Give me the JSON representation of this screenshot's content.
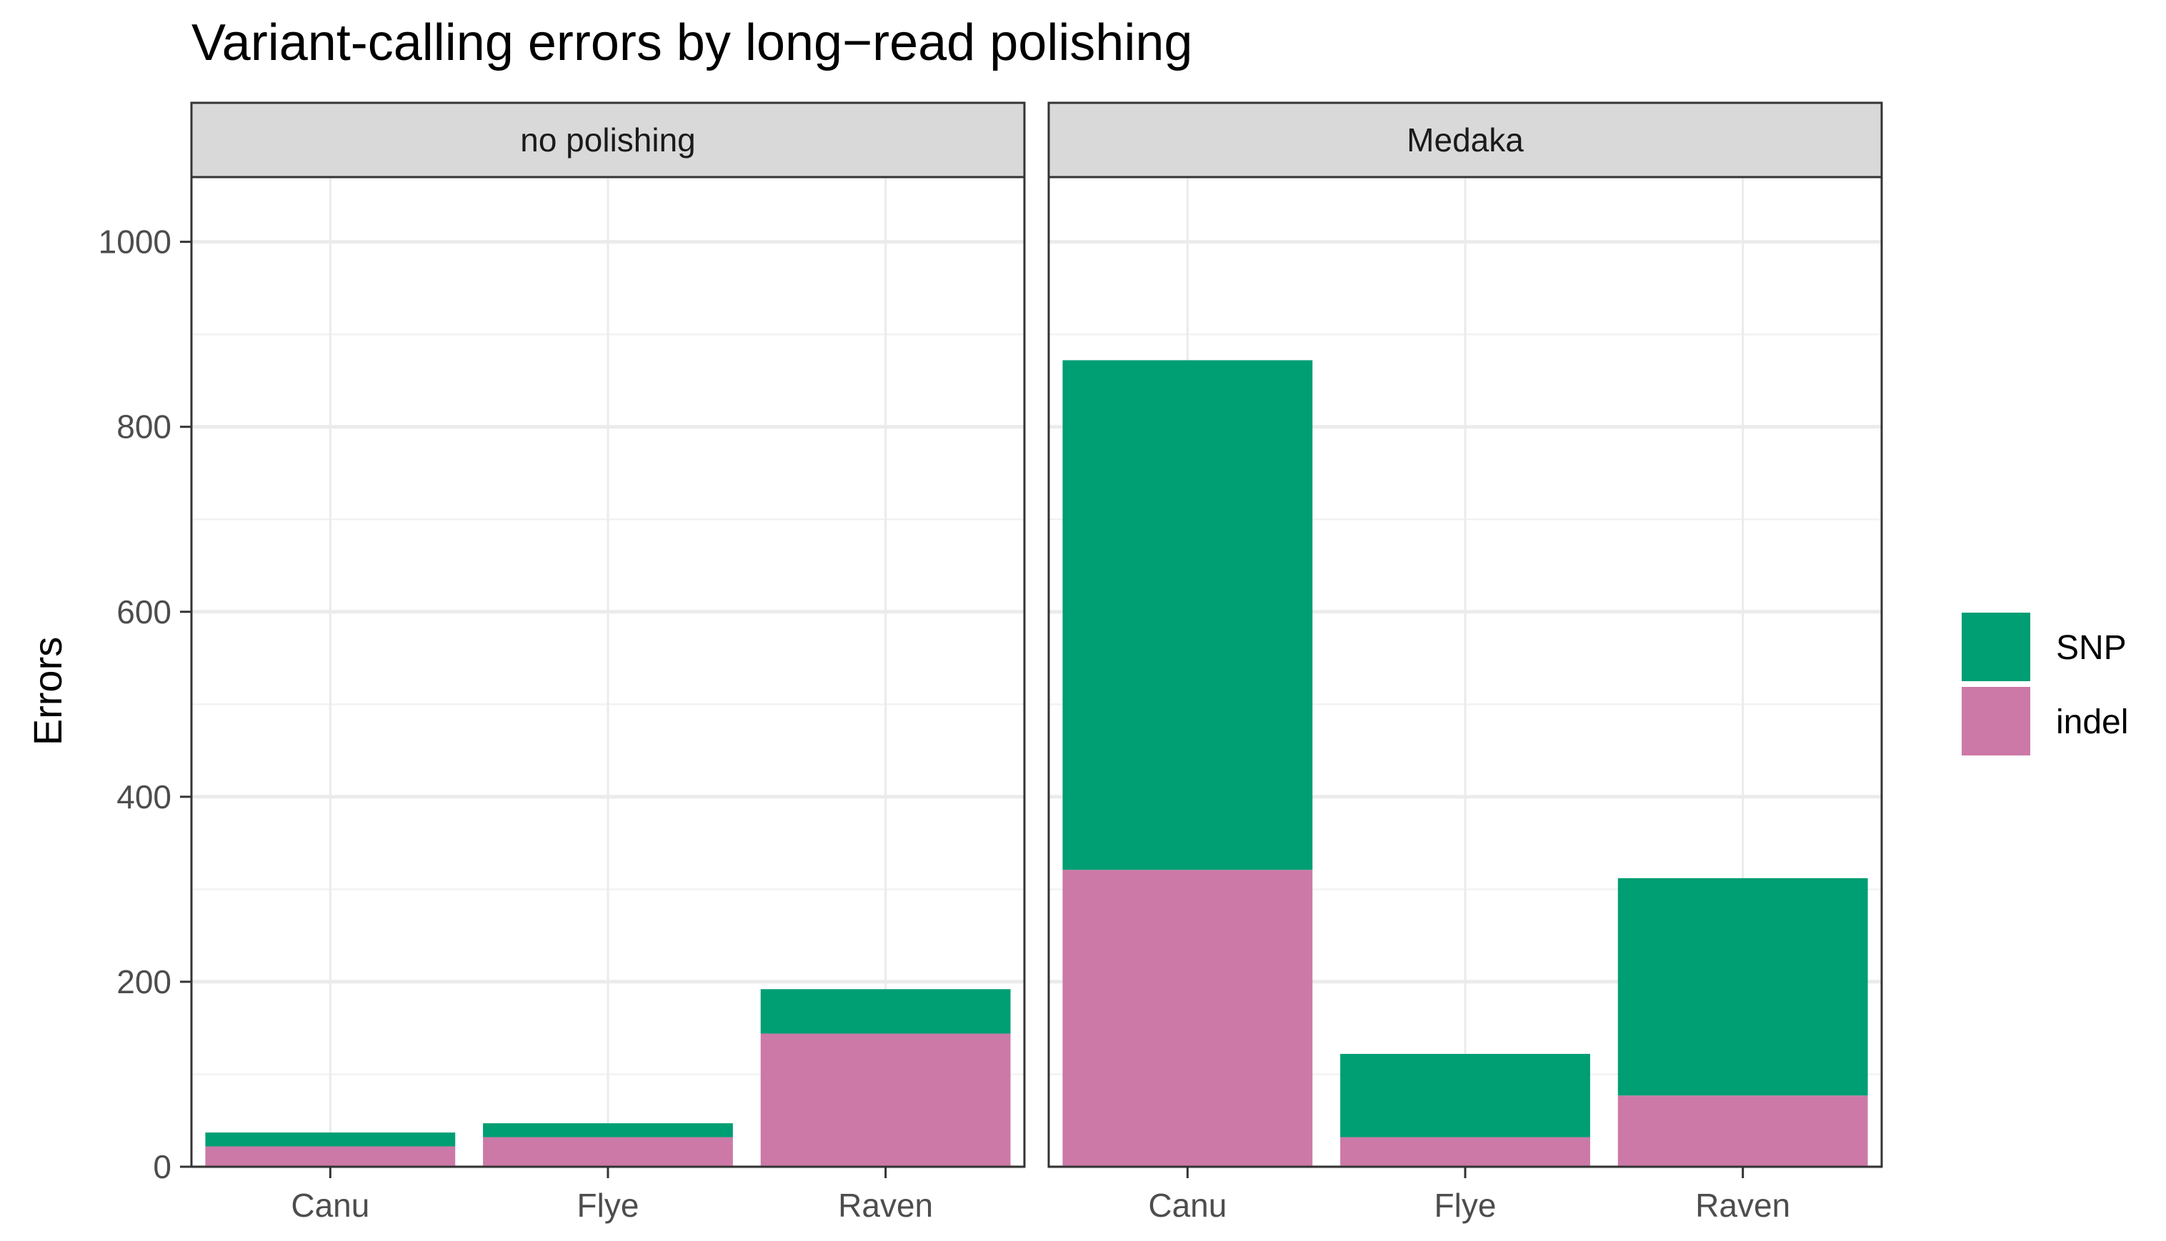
{
  "chart_data": {
    "type": "bar",
    "stacked": true,
    "title": "Variant-calling errors by long−read polishing",
    "xlabel": "",
    "ylabel": "Errors",
    "ylim": [
      0,
      1070
    ],
    "y_ticks": [
      0,
      200,
      400,
      600,
      800,
      1000
    ],
    "grid": true,
    "legend_position": "right",
    "categories": [
      "Canu",
      "Flye",
      "Raven"
    ],
    "series_order": [
      "SNP",
      "indel"
    ],
    "colors": {
      "SNP": "#009E73",
      "indel": "#CC79A7"
    },
    "panels": [
      {
        "label": "no polishing",
        "series": [
          {
            "name": "indel",
            "values": [
              22,
              32,
              144
            ]
          },
          {
            "name": "SNP",
            "values": [
              15,
              15,
              48
            ]
          }
        ]
      },
      {
        "label": "Medaka",
        "series": [
          {
            "name": "indel",
            "values": [
              321,
              32,
              77
            ]
          },
          {
            "name": "SNP",
            "values": [
              551,
              90,
              235
            ]
          }
        ]
      }
    ]
  }
}
